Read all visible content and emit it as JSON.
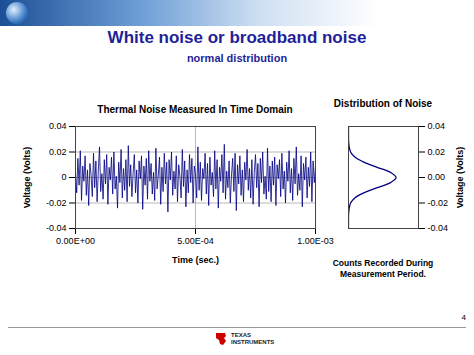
{
  "title": "White noise or broadband noise",
  "subtitle": "normal distribution",
  "page": 4,
  "logo": [
    "TEXAS",
    "INSTRUMENTS"
  ],
  "chart_data": [
    {
      "type": "line",
      "title": "Thermal Noise Measured In Time Domain",
      "xlabel": "Time (sec.)",
      "ylabel": "Voltage (Volts)",
      "color": "#000080",
      "x": [
        0,
        5e-06,
        1e-05,
        1.5e-05,
        2e-05,
        2.5e-05,
        3e-05,
        3.5e-05,
        4e-05,
        4.5e-05,
        5e-05,
        5.5e-05,
        6e-05,
        6.5e-05,
        7e-05,
        7.5e-05,
        8e-05,
        8.5e-05,
        9e-05,
        9.5e-05,
        0.0001,
        0.000105,
        0.00011,
        0.000115,
        0.00012,
        0.000125,
        0.00013,
        0.000135,
        0.00014,
        0.000145,
        0.00015,
        0.000155,
        0.00016,
        0.000165,
        0.00017,
        0.000175,
        0.00018,
        0.000185,
        0.00019,
        0.000195,
        0.0002,
        0.000205,
        0.00021,
        0.000215,
        0.00022,
        0.000225,
        0.00023,
        0.000235,
        0.00024,
        0.000245,
        0.00025,
        0.000255,
        0.00026,
        0.000265,
        0.00027,
        0.000275,
        0.00028,
        0.000285,
        0.00029,
        0.000295,
        0.0003,
        0.000305,
        0.00031,
        0.000315,
        0.00032,
        0.000325,
        0.00033,
        0.000335,
        0.00034,
        0.000345,
        0.00035,
        0.000355,
        0.00036,
        0.000365,
        0.00037,
        0.000375,
        0.00038,
        0.000385,
        0.00039,
        0.000395,
        0.0004,
        0.000405,
        0.00041,
        0.000415,
        0.00042,
        0.000425,
        0.00043,
        0.000435,
        0.00044,
        0.000445,
        0.00045,
        0.000455,
        0.00046,
        0.000465,
        0.00047,
        0.000475,
        0.00048,
        0.000485,
        0.00049,
        0.000495,
        0.0005,
        0.000505,
        0.00051,
        0.000515,
        0.00052,
        0.000525,
        0.00053,
        0.000535,
        0.00054,
        0.000545,
        0.00055,
        0.000555,
        0.00056,
        0.000565,
        0.00057,
        0.000575,
        0.00058,
        0.000585,
        0.00059,
        0.000595,
        0.0006,
        0.000605,
        0.00061,
        0.000615,
        0.00062,
        0.000625,
        0.00063,
        0.000635,
        0.00064,
        0.000645,
        0.00065,
        0.000655,
        0.00066,
        0.000665,
        0.00067,
        0.000675,
        0.00068,
        0.000685,
        0.00069,
        0.000695,
        0.0007,
        0.000705,
        0.00071,
        0.000715,
        0.00072,
        0.000725,
        0.00073,
        0.000735,
        0.00074,
        0.000745,
        0.00075,
        0.000755,
        0.00076,
        0.000765,
        0.00077,
        0.000775,
        0.00078,
        0.000785,
        0.00079,
        0.000795,
        0.0008,
        0.000805,
        0.00081,
        0.000815,
        0.00082,
        0.000825,
        0.00083,
        0.000835,
        0.00084,
        0.000845,
        0.00085,
        0.000855,
        0.00086,
        0.000865,
        0.00087,
        0.000875,
        0.00088,
        0.000885,
        0.00089,
        0.000895,
        0.0009,
        0.000905,
        0.00091,
        0.000915,
        0.00092,
        0.000925,
        0.00093,
        0.000935,
        0.00094,
        0.000945,
        0.00095,
        0.000955,
        0.00096,
        0.000965,
        0.00097,
        0.000975,
        0.00098,
        0.000985,
        0.00099,
        0.000995,
        0.001
      ],
      "values": [
        0.004,
        -0.012,
        0.015,
        -0.006,
        0.021,
        -0.018,
        0.009,
        -0.003,
        0.017,
        -0.014,
        0.006,
        -0.022,
        0.011,
        0.002,
        -0.015,
        0.019,
        -0.008,
        0.013,
        -0.019,
        0.005,
        0.024,
        -0.011,
        0.003,
        -0.017,
        0.014,
        -0.005,
        0.018,
        -0.021,
        0.008,
        -0.002,
        0.016,
        -0.013,
        0.02,
        -0.009,
        0.001,
        -0.024,
        0.012,
        -0.004,
        0.022,
        -0.016,
        0.007,
        -0.01,
        0.014,
        -0.019,
        0.025,
        -0.007,
        0.01,
        -0.015,
        0.003,
        0.018,
        -0.012,
        0.006,
        -0.02,
        0.013,
        -0.001,
        0.017,
        -0.025,
        0.009,
        -0.006,
        0.015,
        -0.017,
        0.021,
        -0.003,
        0.011,
        -0.013,
        0.004,
        -0.018,
        0.023,
        -0.009,
        0.002,
        0.016,
        -0.021,
        0.008,
        -0.011,
        0.019,
        -0.005,
        0.012,
        -0.027,
        0.014,
        -0.002,
        0.02,
        -0.014,
        0.005,
        -0.009,
        0.017,
        -0.019,
        0.01,
        0.001,
        -0.016,
        0.022,
        -0.007,
        0.013,
        -0.023,
        0.006,
        -0.012,
        0.018,
        -0.004,
        0.015,
        -0.02,
        0.009,
        0.003,
        -0.016,
        0.024,
        -0.01,
        0.012,
        -0.018,
        0.007,
        -0.001,
        0.019,
        -0.013,
        0.011,
        -0.022,
        0.016,
        -0.006,
        0.004,
        -0.015,
        0.021,
        -0.009,
        0.014,
        -0.024,
        0.008,
        -0.003,
        0.018,
        -0.012,
        0.026,
        -0.017,
        0.005,
        -0.008,
        0.013,
        -0.02,
        0.002,
        0.015,
        -0.011,
        0.019,
        -0.026,
        0.01,
        -0.005,
        0.017,
        -0.014,
        0.006,
        -0.019,
        0.012,
        -0.002,
        0.022,
        -0.01,
        0.007,
        -0.016,
        0.014,
        -0.021,
        0.004,
        0.018,
        -0.008,
        0.011,
        -0.023,
        0.015,
        -0.004,
        0.02,
        -0.013,
        0.001,
        -0.017,
        0.023,
        -0.011,
        0.009,
        -0.019,
        0.013,
        -0.006,
        0.016,
        -0.022,
        0.01,
        -0.001,
        0.014,
        -0.015,
        0.019,
        -0.009,
        0.005,
        -0.02,
        0.012,
        -0.003,
        0.021,
        -0.012,
        0.007,
        -0.018,
        0.015,
        -0.005,
        0.024,
        -0.014,
        0.003,
        -0.01,
        0.017,
        -0.023,
        0.011,
        -0.002,
        0.016,
        -0.016,
        0.008,
        -0.007,
        0.02,
        -0.019,
        0.013,
        -0.004,
        0.009
      ],
      "xlim": [
        0,
        0.001
      ],
      "ylim": [
        -0.04,
        0.04
      ],
      "xticks": [
        {
          "value": 0,
          "label": "0.00E+00"
        },
        {
          "value": 0.0005,
          "label": "5.00E-04"
        },
        {
          "value": 0.001,
          "label": "1.00E-03"
        }
      ],
      "yticks": [
        -0.04,
        -0.02,
        0,
        0.02,
        0.04
      ],
      "grid": true
    },
    {
      "type": "line",
      "title": "Distribution of Noise",
      "xlabel": "Counts Recorded During Measurement Period.",
      "ylabel": "Voltage (Volts)",
      "color": "#000080",
      "voltage": [
        -0.04,
        -0.036,
        -0.032,
        -0.028,
        -0.024,
        -0.02,
        -0.016,
        -0.012,
        -0.008,
        -0.004,
        0,
        0.004,
        0.008,
        0.012,
        0.016,
        0.02,
        0.024,
        0.028,
        0.032,
        0.036,
        0.04
      ],
      "counts": [
        0,
        0,
        0,
        0.2,
        1,
        3,
        9,
        22,
        41,
        60,
        68,
        60,
        41,
        22,
        9,
        3,
        1,
        0.2,
        0,
        0,
        0
      ],
      "xlim": [
        0,
        100
      ],
      "ylim": [
        -0.04,
        0.04
      ],
      "yticks": [
        -0.04,
        -0.02,
        {
          "value": 0,
          "label": "0.00"
        },
        0.02,
        0.04
      ],
      "tick_labels": "y",
      "grid": false
    }
  ]
}
